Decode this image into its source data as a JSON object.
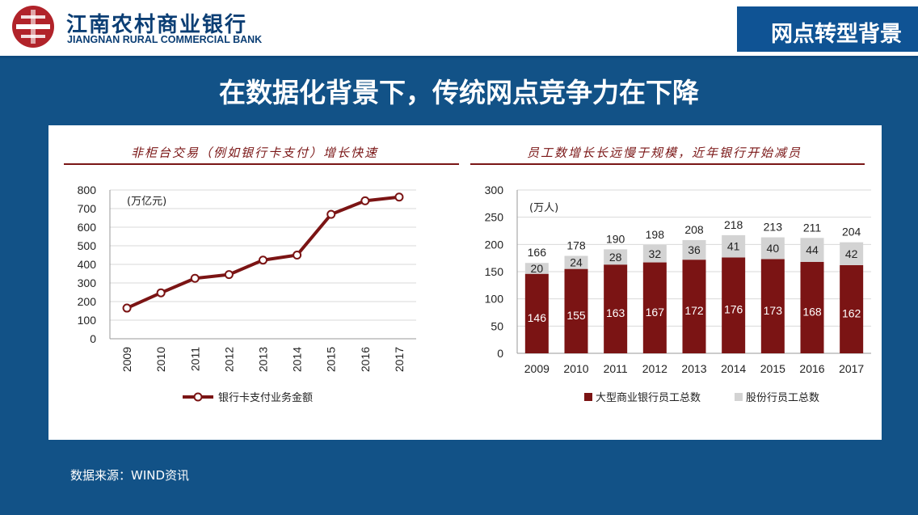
{
  "header": {
    "bank_name_cn": "江南农村商业银行",
    "bank_name_en": "JIANGNAN RURAL COMMERCIAL BANK",
    "section_title": "网点转型背景",
    "brand_red": "#b1232a",
    "brand_blue": "#0b3e74"
  },
  "headline": "在数据化背景下，传统网点竞争力在下降",
  "source_note": "数据来源：WIND资讯",
  "chart_data": [
    {
      "type": "line",
      "title": "非柜台交易（例如银行卡支付）增长快速",
      "unit_label": "(万亿元)",
      "categories": [
        "2009",
        "2010",
        "2011",
        "2012",
        "2013",
        "2014",
        "2015",
        "2016",
        "2017"
      ],
      "series": [
        {
          "name": "银行卡支付业务金额",
          "values": [
            165,
            247,
            325,
            345,
            423,
            450,
            669,
            742,
            762
          ],
          "color": "#7b1414"
        }
      ],
      "ylim": [
        0,
        800
      ],
      "yticks": [
        0,
        100,
        200,
        300,
        400,
        500,
        600,
        700,
        800
      ],
      "grid": true,
      "legend": "bottom"
    },
    {
      "type": "bar",
      "stacked": true,
      "title": "员工数增长长远慢于规模，近年银行开始减员",
      "unit_label": "(万人)",
      "categories": [
        "2009",
        "2010",
        "2011",
        "2012",
        "2013",
        "2014",
        "2015",
        "2016",
        "2017"
      ],
      "series": [
        {
          "name": "大型商业银行员工总数",
          "values": [
            146,
            155,
            163,
            167,
            172,
            176,
            173,
            168,
            162
          ],
          "color": "#7b1414"
        },
        {
          "name": "股份行员工总数",
          "values": [
            20,
            24,
            28,
            32,
            36,
            41,
            40,
            44,
            42
          ],
          "color": "#d3d3d3"
        }
      ],
      "totals": [
        166,
        178,
        190,
        198,
        208,
        218,
        213,
        211,
        204
      ],
      "ylim": [
        0,
        300
      ],
      "yticks": [
        0,
        50,
        100,
        150,
        200,
        250,
        300
      ],
      "grid": true,
      "legend": "bottom"
    }
  ]
}
